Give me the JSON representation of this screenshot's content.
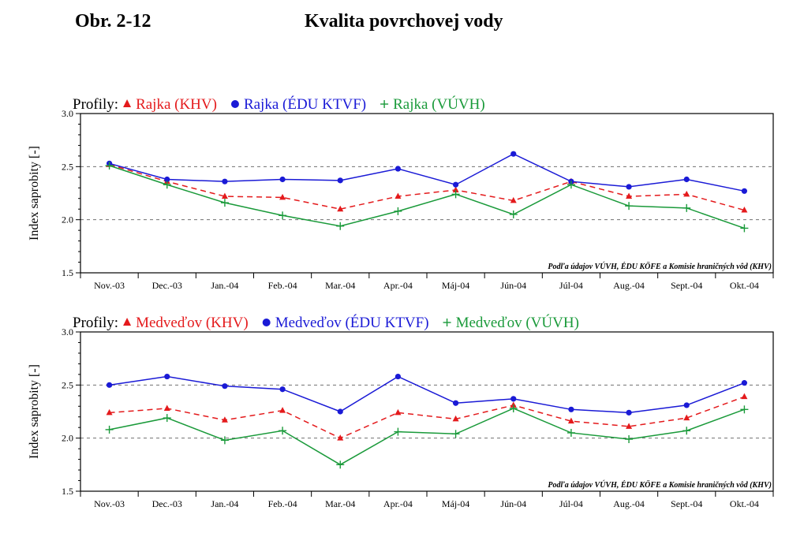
{
  "header": {
    "figure_label": "Obr. 2-12",
    "title": "Kvalita povrchovej vody"
  },
  "colors": {
    "red": "#e41a1c",
    "blue": "#1a1ad6",
    "green": "#1a9a3a",
    "ref_line": "#707070",
    "axis": "#000000"
  },
  "chart_data": [
    {
      "type": "line",
      "legend_title": "Profily:",
      "ylabel": "Index saprobity [-]",
      "xlabel": "",
      "ylim": [
        1.5,
        3.0
      ],
      "yticks": [
        "1.5",
        "2.0",
        "2.5",
        "3.0"
      ],
      "reference_lines": [
        2.0,
        2.5
      ],
      "categories": [
        "Nov.-03",
        "Dec.-03",
        "Jan.-04",
        "Feb.-04",
        "Mar.-04",
        "Apr.-04",
        "Máj-04",
        "Jún-04",
        "Júl-04",
        "Aug.-04",
        "Sept.-04",
        "Okt.-04"
      ],
      "source_note": "Podľa údajov VÚVH, ÉDU KÖFE a Komisie hraničných vôd (KHV)",
      "legend_placement": "top-left",
      "series": [
        {
          "name": "Rajka (KHV)",
          "marker": "triangle",
          "dash": true,
          "color": "#e41a1c",
          "values": [
            2.52,
            2.36,
            2.22,
            2.21,
            2.1,
            2.22,
            2.28,
            2.18,
            2.36,
            2.22,
            2.24,
            2.09
          ]
        },
        {
          "name": "Rajka (ÉDU KTVF)",
          "marker": "circle",
          "dash": false,
          "color": "#1a1ad6",
          "values": [
            2.53,
            2.38,
            2.36,
            2.38,
            2.37,
            2.48,
            2.33,
            2.62,
            2.36,
            2.31,
            2.38,
            2.27
          ]
        },
        {
          "name": "Rajka (VÚVH)",
          "marker": "plus",
          "dash": false,
          "color": "#1a9a3a",
          "values": [
            2.51,
            2.33,
            2.16,
            2.04,
            1.94,
            2.08,
            2.24,
            2.05,
            2.33,
            2.13,
            2.11,
            1.92
          ]
        }
      ]
    },
    {
      "type": "line",
      "legend_title": "Profily:",
      "ylabel": "Index saprobity [-]",
      "xlabel": "",
      "ylim": [
        1.5,
        3.0
      ],
      "yticks": [
        "1.5",
        "2.0",
        "2.5",
        "3.0"
      ],
      "reference_lines": [
        2.0,
        2.5
      ],
      "categories": [
        "Nov.-03",
        "Dec.-03",
        "Jan.-04",
        "Feb.-04",
        "Mar.-04",
        "Apr.-04",
        "Máj-04",
        "Jún-04",
        "Júl-04",
        "Aug.-04",
        "Sept.-04",
        "Okt.-04"
      ],
      "source_note": "Podľa údajov VÚVH, ÉDU KÖFE a Komisie hraničných vôd (KHV)",
      "legend_placement": "top-left",
      "series": [
        {
          "name": "Medveďov (KHV)",
          "marker": "triangle",
          "dash": true,
          "color": "#e41a1c",
          "values": [
            2.24,
            2.28,
            2.17,
            2.26,
            2.0,
            2.24,
            2.18,
            2.31,
            2.16,
            2.11,
            2.19,
            2.39
          ]
        },
        {
          "name": "Medveďov (ÉDU KTVF)",
          "marker": "circle",
          "dash": false,
          "color": "#1a1ad6",
          "values": [
            2.5,
            2.58,
            2.49,
            2.46,
            2.25,
            2.58,
            2.33,
            2.37,
            2.27,
            2.24,
            2.31,
            2.52
          ]
        },
        {
          "name": "Medveďov (VÚVH)",
          "marker": "plus",
          "dash": false,
          "color": "#1a9a3a",
          "values": [
            2.08,
            2.19,
            1.98,
            2.07,
            1.75,
            2.06,
            2.04,
            2.28,
            2.05,
            1.99,
            2.07,
            2.27
          ]
        }
      ]
    }
  ]
}
